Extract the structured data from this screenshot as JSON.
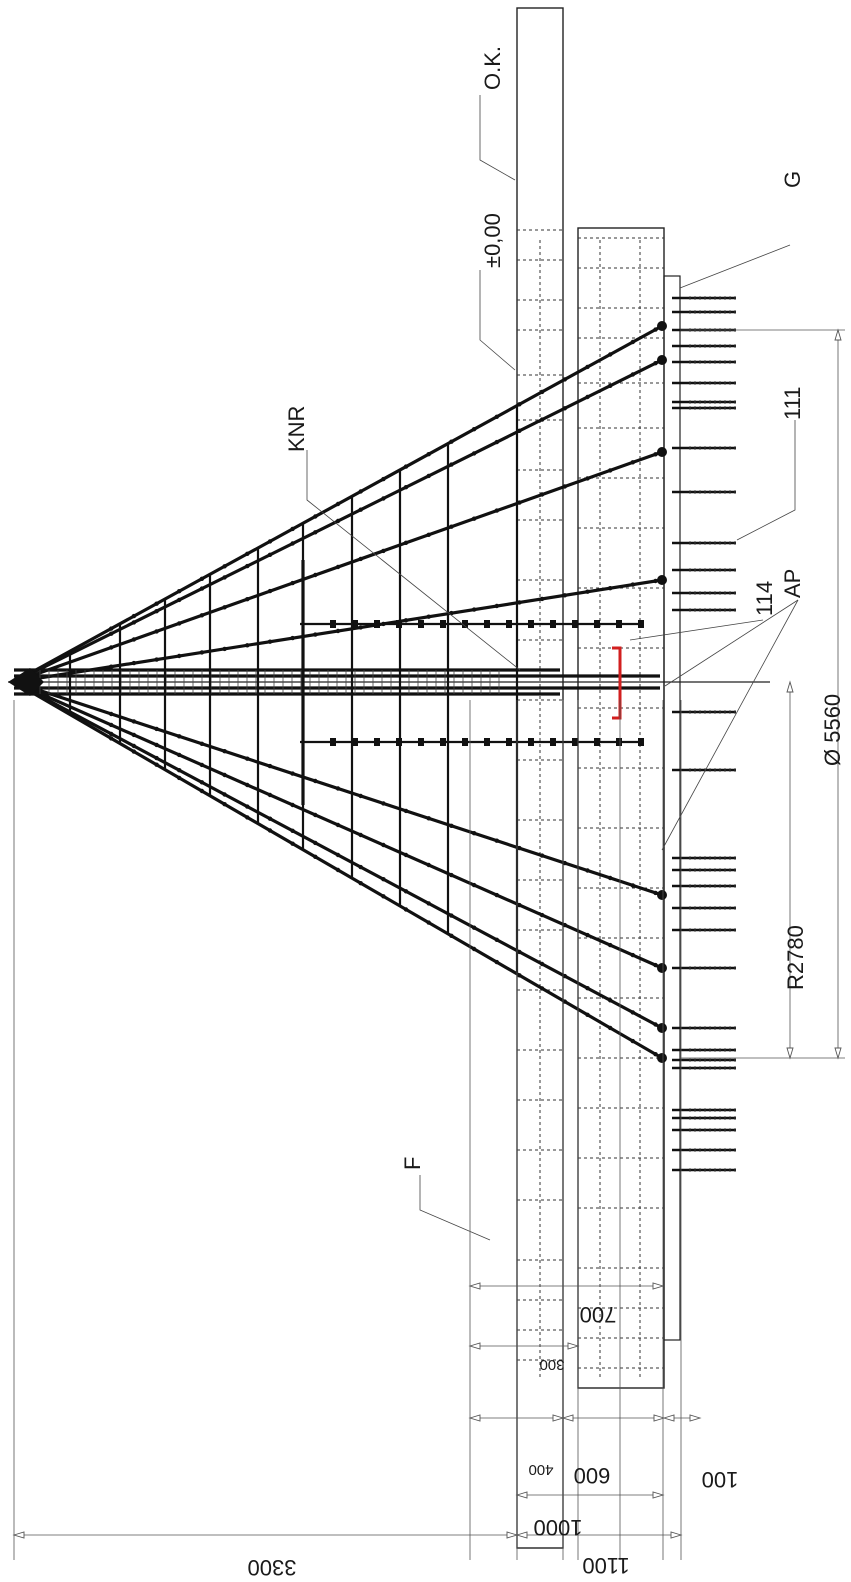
{
  "labels": {
    "ok": "O.K.",
    "g": "G",
    "zero": "±0,00",
    "item_111": "111",
    "knr": "KNR",
    "item_114": "114",
    "ap": "AP",
    "f": "F"
  },
  "dimensions": {
    "diameter": "Ø 5560",
    "radius": "R2780",
    "d700": "700",
    "d300": "300",
    "d400": "400",
    "d600": "600",
    "d100": "100",
    "d1000": "1000",
    "d1100": "1100",
    "d3300": "3300"
  },
  "colors": {
    "line": "#222222",
    "highlight": "#d21f1f",
    "background": "#ffffff"
  }
}
